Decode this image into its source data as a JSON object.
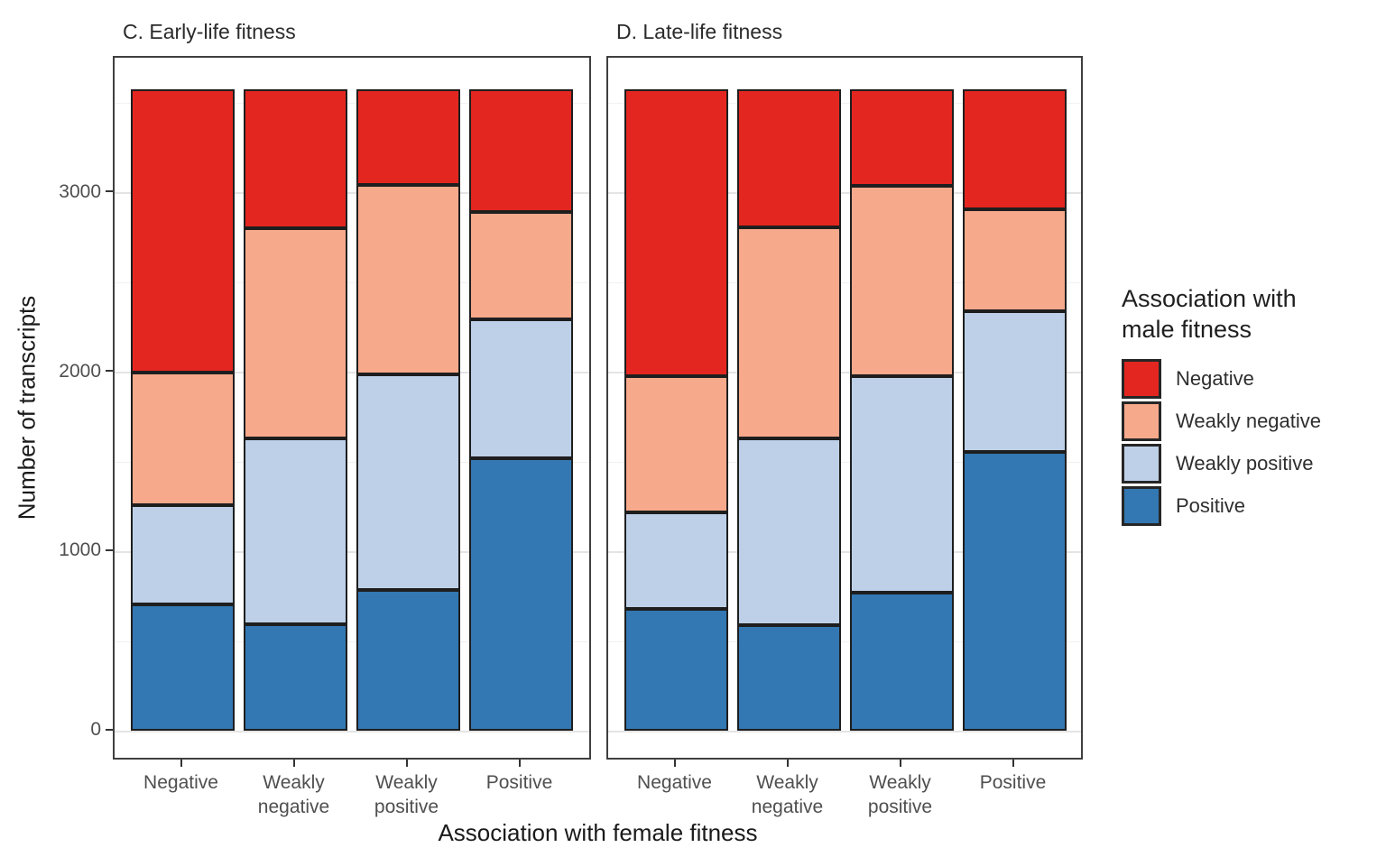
{
  "figure": {
    "y_axis_title": "Number of transcripts",
    "x_axis_title": "Association with female fitness"
  },
  "chart_data": {
    "type": "bar",
    "stacked": true,
    "grid": "major and minor horizontal gridlines, light gray on white",
    "legend_position": "right",
    "categories": [
      "Negative",
      "Weakly negative",
      "Weakly positive",
      "Positive"
    ],
    "x_tick_labels": [
      "Negative",
      "Weakly\nnegative",
      "Weakly\npositive",
      "Positive"
    ],
    "xlabel": "Association with female fitness",
    "ylabel": "Number of transcripts",
    "y_ticks": [
      0,
      1000,
      2000,
      3000
    ],
    "y_minor_ticks": [
      500,
      1500,
      2500,
      3500
    ],
    "ylim": [
      0,
      3580
    ],
    "bar_total": 3580,
    "stack_order_bottom_to_top": [
      "Positive",
      "Weakly positive",
      "Weakly negative",
      "Negative"
    ],
    "panels": [
      {
        "title": "C. Early-life fitness",
        "series": [
          {
            "name": "Negative",
            "values": [
              1580,
              775,
              535,
              685
            ]
          },
          {
            "name": "Weakly negative",
            "values": [
              740,
              1170,
              1055,
              600
            ]
          },
          {
            "name": "Weakly positive",
            "values": [
              555,
              1040,
              1205,
              775
            ]
          },
          {
            "name": "Positive",
            "values": [
              705,
              595,
              785,
              1520
            ]
          }
        ]
      },
      {
        "title": "D. Late-life fitness",
        "series": [
          {
            "name": "Negative",
            "values": [
              1600,
              770,
              540,
              670
            ]
          },
          {
            "name": "Weakly negative",
            "values": [
              760,
              1175,
              1060,
              570
            ]
          },
          {
            "name": "Weakly positive",
            "values": [
              540,
              1045,
              1210,
              785
            ]
          },
          {
            "name": "Positive",
            "values": [
              680,
              590,
              770,
              1555
            ]
          }
        ]
      }
    ],
    "legend": {
      "title": "Association with\nmale fitness",
      "entries": [
        {
          "label": "Negative",
          "color": "#e42620"
        },
        {
          "label": "Weakly negative",
          "color": "#f7a98b"
        },
        {
          "label": "Weakly positive",
          "color": "#bdd0e8"
        },
        {
          "label": "Positive",
          "color": "#3377b3"
        }
      ]
    }
  }
}
